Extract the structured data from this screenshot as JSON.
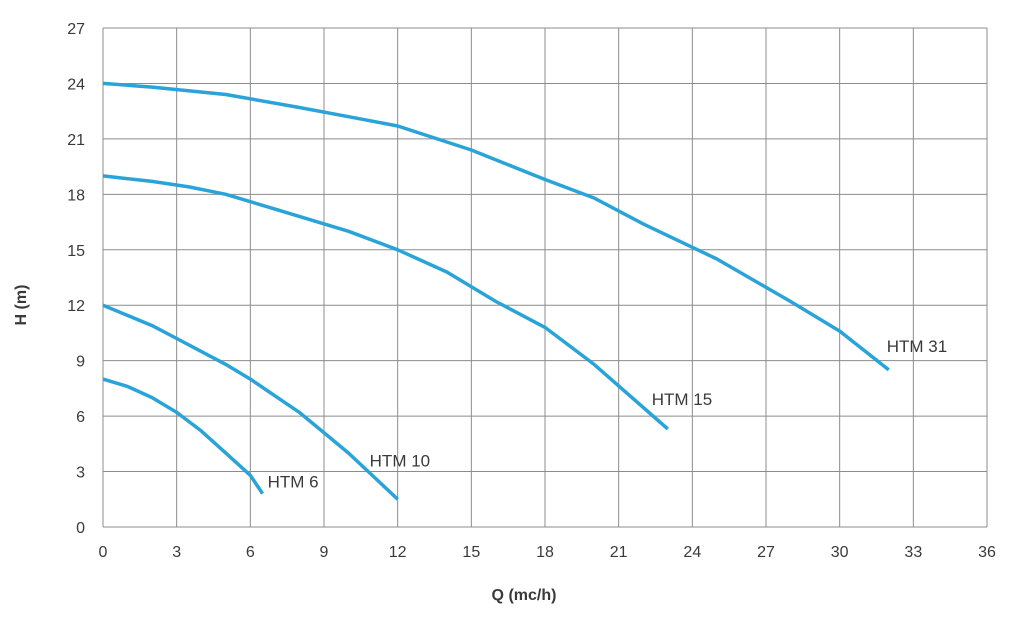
{
  "chart_data": {
    "type": "line",
    "title": "",
    "xlabel": "Q (mc/h)",
    "ylabel": "H (m)",
    "xlim": [
      0,
      36
    ],
    "ylim": [
      0,
      27
    ],
    "x_ticks": [
      0,
      3,
      6,
      9,
      12,
      15,
      18,
      21,
      24,
      27,
      30,
      33,
      36
    ],
    "y_ticks": [
      0,
      3,
      6,
      9,
      12,
      15,
      18,
      21,
      24,
      27
    ],
    "grid": true,
    "legend": "none",
    "line_color": "#2aa4d8",
    "series": [
      {
        "name": "HTM 6",
        "x": [
          0,
          1,
          2,
          3,
          4,
          5,
          6,
          6.5
        ],
        "y": [
          8.0,
          7.6,
          7.0,
          6.2,
          5.2,
          4.0,
          2.8,
          1.8
        ]
      },
      {
        "name": "HTM 10",
        "x": [
          0,
          2,
          3,
          4,
          5,
          6,
          8,
          10,
          12
        ],
        "y": [
          12.0,
          10.9,
          10.2,
          9.5,
          8.8,
          8.0,
          6.2,
          4.0,
          1.5
        ]
      },
      {
        "name": "HTM 15",
        "x": [
          0,
          2,
          3.5,
          5,
          7,
          10,
          12,
          14,
          16,
          18,
          20,
          23
        ],
        "y": [
          19.0,
          18.7,
          18.4,
          18.0,
          17.2,
          16.0,
          15.0,
          13.8,
          12.2,
          10.8,
          8.8,
          5.3
        ]
      },
      {
        "name": "HTM 31",
        "x": [
          0,
          2,
          5,
          8,
          10,
          12,
          15,
          18,
          20,
          22,
          25,
          28,
          30,
          32
        ],
        "y": [
          24.0,
          23.8,
          23.4,
          22.7,
          22.2,
          21.7,
          20.4,
          18.8,
          17.8,
          16.4,
          14.5,
          12.2,
          10.6,
          8.5
        ]
      }
    ]
  }
}
